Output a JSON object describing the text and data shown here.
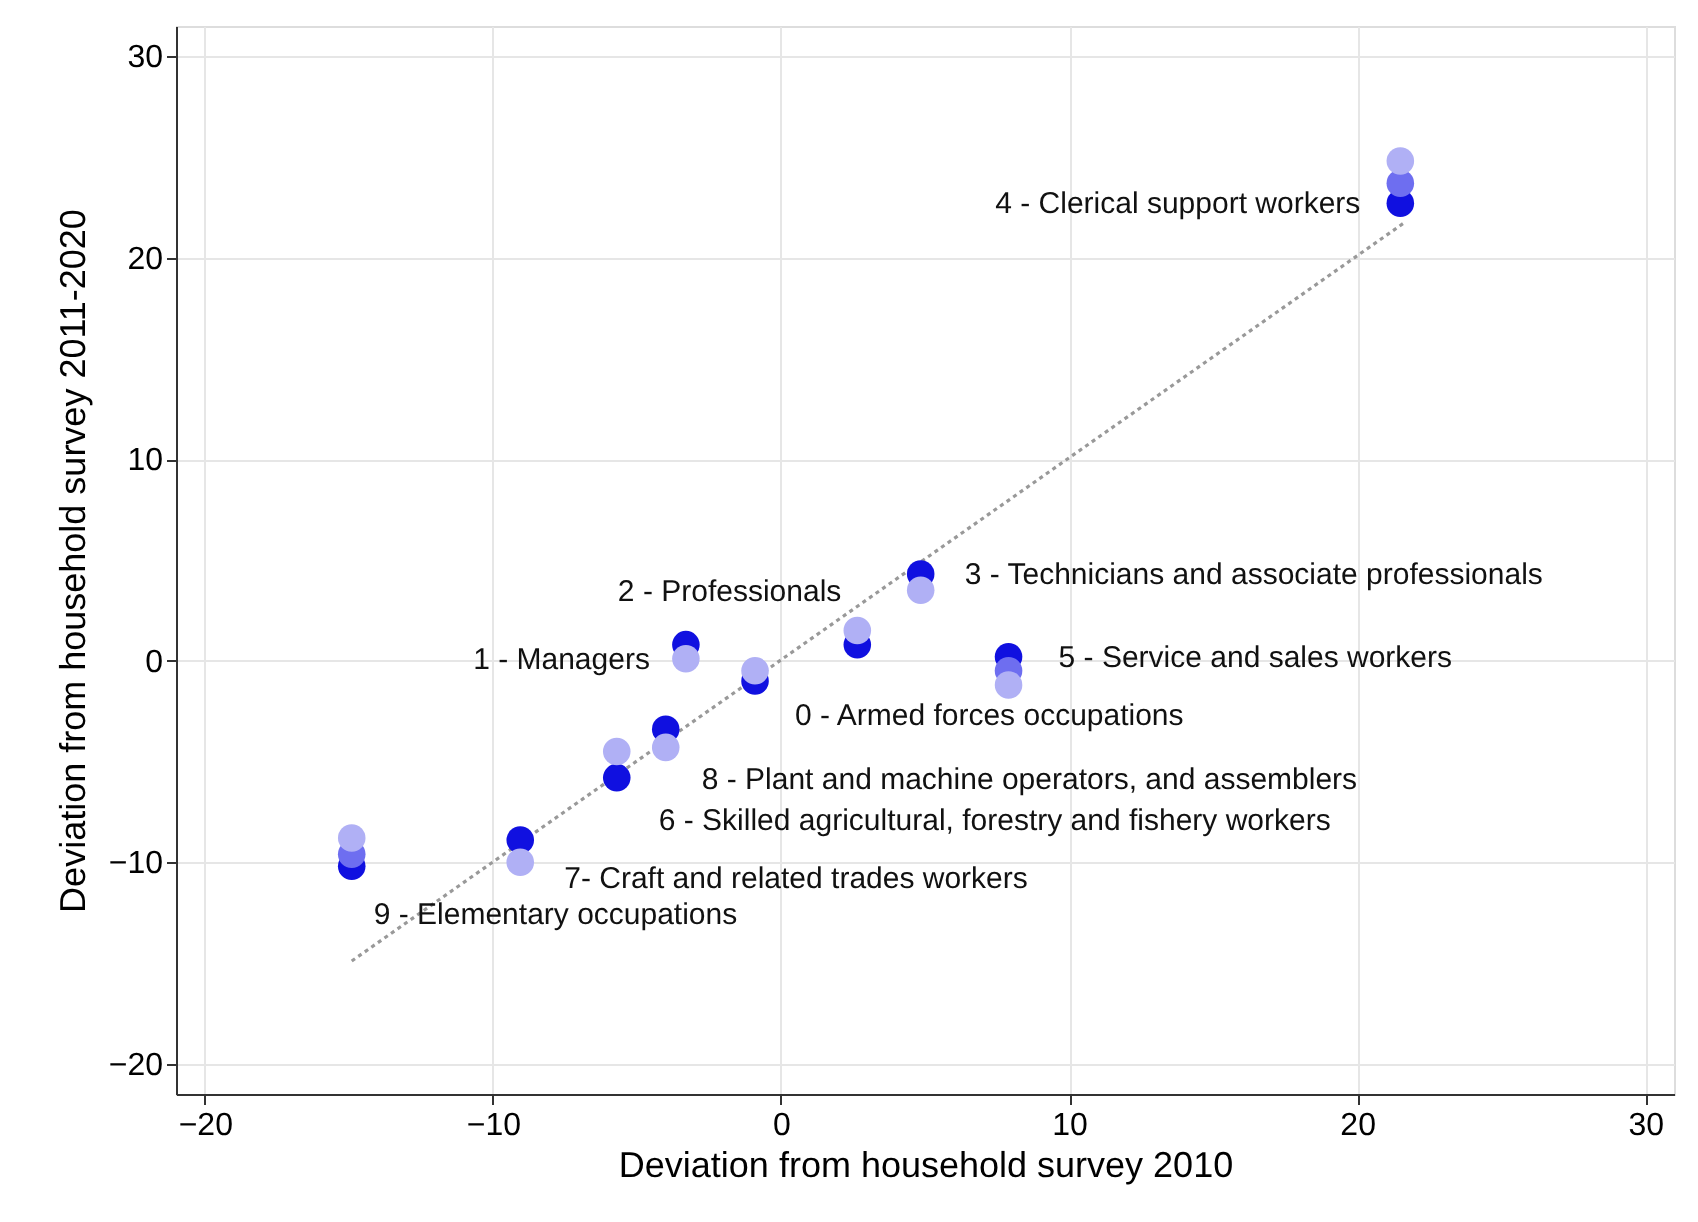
{
  "chart_data": {
    "type": "scatter",
    "xlabel": "Deviation from household survey 2010",
    "ylabel": "Deviation from household survey 2011-2020",
    "xlim": [
      -21,
      31
    ],
    "ylim": [
      -21.5,
      31.5
    ],
    "xticks": [
      -20,
      -10,
      0,
      10,
      20,
      30
    ],
    "yticks": [
      -20,
      -10,
      0,
      10,
      20,
      30
    ],
    "grid": true,
    "marker": "circle",
    "series": [
      {
        "x": [
          -14.9,
          -14.9,
          -14.9,
          -9.05,
          -9.05,
          -5.7,
          -5.7,
          -4.0,
          -4.0,
          -3.3,
          -3.3,
          -0.9,
          -0.9,
          2.65,
          2.65,
          4.85,
          4.85,
          7.9,
          7.9,
          7.9,
          21.5,
          21.5,
          21.5
        ],
        "values": [
          -10.2,
          -9.6,
          -8.8,
          -8.9,
          -10.0,
          -5.8,
          -4.5,
          -3.4,
          -4.3,
          0.8,
          0.1,
          -1.0,
          -0.5,
          0.8,
          1.5,
          4.3,
          3.5,
          0.2,
          -0.5,
          -1.2,
          22.7,
          23.7,
          24.8
        ],
        "colors": [
          "#1010e0",
          "#6e6ef0",
          "#b0b0f5",
          "#1010e0",
          "#b0b0f5",
          "#1010e0",
          "#b0b0f5",
          "#1010e0",
          "#b0b0f5",
          "#1010e0",
          "#b0b0f5",
          "#1010e0",
          "#b0b0f5",
          "#1010e0",
          "#b0b0f5",
          "#1010e0",
          "#b0b0f5",
          "#1010e0",
          "#6e6ef0",
          "#b0b0f5",
          "#1010e0",
          "#6e6ef0",
          "#b0b0f5"
        ]
      },
      {
        "type": "line",
        "x": [
          -14.9,
          21.6
        ],
        "values": [
          -14.9,
          21.7
        ],
        "color": "#999999",
        "line_style": "dotted",
        "marker": "none"
      }
    ],
    "annotations": [
      {
        "text": "4 - Clerical support workers",
        "x": 21.5,
        "y": 22.7
      },
      {
        "text": "2 - Professionals",
        "x": 2.65,
        "y": 1.5
      },
      {
        "text": "3 - Technicians and associate professionals",
        "x": 4.85,
        "y": 4.3
      },
      {
        "text": "1 - Managers",
        "x": -3.3,
        "y": 0.1
      },
      {
        "text": "5 - Service and sales workers",
        "x": 7.9,
        "y": 0.2
      },
      {
        "text": "0 - Armed forces occupations",
        "x": -0.9,
        "y": -0.5
      },
      {
        "text": "8 - Plant and machine operators, and assemblers",
        "x": -4.0,
        "y": -3.4
      },
      {
        "text": "6 - Skilled agricultural, forestry and fishery workers",
        "x": -5.7,
        "y": -5.8
      },
      {
        "text": "7- Craft and related trades workers",
        "x": -9.05,
        "y": -10.0
      },
      {
        "text": "9 - Elementary occupations",
        "x": -14.9,
        "y": -10.2
      }
    ]
  }
}
